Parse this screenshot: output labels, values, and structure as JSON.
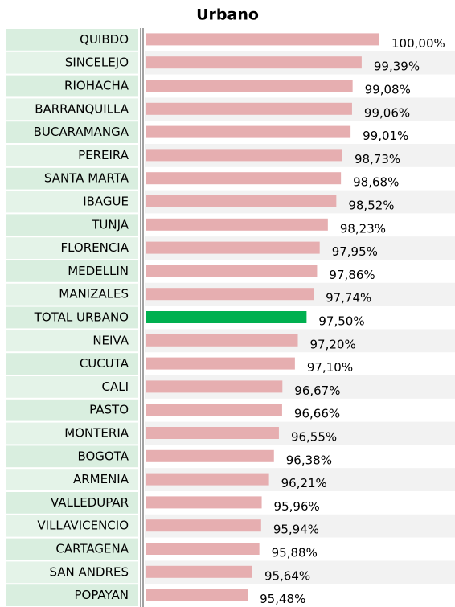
{
  "chart_data": {
    "type": "bar",
    "orientation": "horizontal",
    "title": "Urbano",
    "categories": [
      "QUIBDO",
      "SINCELEJO",
      "RIOHACHA",
      "BARRANQUILLA",
      "BUCARAMANGA",
      "PEREIRA",
      "SANTA MARTA",
      "IBAGUE",
      "TUNJA",
      "FLORENCIA",
      "MEDELLIN",
      "MANIZALES",
      "TOTAL URBANO",
      "NEIVA",
      "CUCUTA",
      "CALI",
      "PASTO",
      "MONTERIA",
      "BOGOTA",
      "ARMENIA",
      "VALLEDUPAR",
      "VILLAVICENCIO",
      "CARTAGENA",
      "SAN ANDRES",
      "POPAYAN"
    ],
    "values": [
      100.0,
      99.39,
      99.08,
      99.06,
      99.01,
      98.73,
      98.68,
      98.52,
      98.23,
      97.95,
      97.86,
      97.74,
      97.5,
      97.2,
      97.1,
      96.67,
      96.66,
      96.55,
      96.38,
      96.21,
      95.96,
      95.94,
      95.88,
      95.64,
      95.48
    ],
    "value_labels": [
      "100,00%",
      "99,39%",
      "99,08%",
      "99,06%",
      "99,01%",
      "98,73%",
      "98,68%",
      "98,52%",
      "98,23%",
      "97,95%",
      "97,86%",
      "97,74%",
      "97,50%",
      "97,20%",
      "97,10%",
      "96,67%",
      "96,66%",
      "96,55%",
      "96,38%",
      "96,21%",
      "95,96%",
      "95,94%",
      "95,88%",
      "95,64%",
      "95,48%"
    ],
    "colors": [
      "#e6aeb0",
      "#e6aeb0",
      "#e6aeb0",
      "#e6aeb0",
      "#e6aeb0",
      "#e6aeb0",
      "#e6aeb0",
      "#e6aeb0",
      "#e6aeb0",
      "#e6aeb0",
      "#e6aeb0",
      "#e6aeb0",
      "#00b050",
      "#e6aeb0",
      "#e6aeb0",
      "#e6aeb0",
      "#e6aeb0",
      "#e6aeb0",
      "#e6aeb0",
      "#e6aeb0",
      "#e6aeb0",
      "#e6aeb0",
      "#e6aeb0",
      "#e6aeb0",
      "#e6aeb0"
    ],
    "xlim": [
      92,
      100
    ]
  }
}
